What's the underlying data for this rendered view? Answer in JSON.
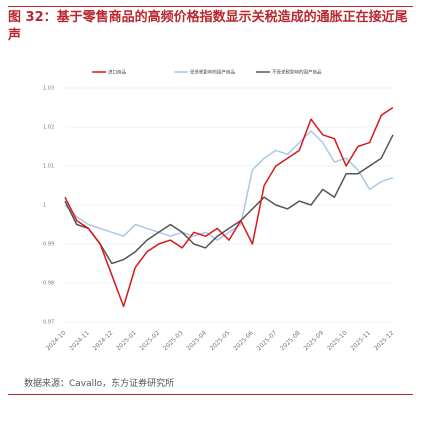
{
  "chart_data": {
    "type": "line",
    "title": "图 32：基于零售商品的高频价格指数显示关税造成的通胀正在接近尾声",
    "source": "数据来源：Cavallo，东方证券研究所",
    "categories": [
      "2024-10",
      null,
      "2024-11",
      null,
      "2024-12",
      null,
      "2025-01",
      null,
      "2025-02",
      null,
      "2025-03",
      null,
      "2025-04",
      null,
      "2025-05",
      null,
      "2025-06",
      null,
      "2025-07",
      null,
      "2025-08",
      null,
      "2025-09",
      null,
      "2025-10",
      null,
      "2025-11",
      null,
      "2025-12"
    ],
    "series": [
      {
        "name": "进口商品",
        "color": "#d7191c",
        "values": [
          1.002,
          0.996,
          0.994,
          0.99,
          0.982,
          0.974,
          0.984,
          0.988,
          0.99,
          0.991,
          0.989,
          0.993,
          0.992,
          0.994,
          0.991,
          0.996,
          0.99,
          1.005,
          1.01,
          1.012,
          1.014,
          1.022,
          1.018,
          1.017,
          1.01,
          1.015,
          1.016,
          1.023,
          1.025
        ]
      },
      {
        "name": "受关税影响的国产商品",
        "color": "#a9c8ea",
        "values": [
          1.0,
          0.997,
          0.995,
          0.994,
          0.993,
          0.992,
          0.995,
          0.994,
          0.993,
          0.992,
          0.993,
          0.992,
          0.993,
          0.991,
          0.993,
          0.995,
          1.009,
          1.012,
          1.014,
          1.013,
          1.016,
          1.019,
          1.016,
          1.011,
          1.012,
          1.009,
          1.004,
          1.006,
          1.007
        ]
      },
      {
        "name": "不受关税影响的国产商品",
        "color": "#555555",
        "values": [
          1.001,
          0.995,
          0.994,
          0.99,
          0.985,
          0.986,
          0.988,
          0.991,
          0.993,
          0.995,
          0.993,
          0.99,
          0.989,
          0.992,
          0.994,
          0.996,
          0.999,
          1.002,
          1.0,
          0.999,
          1.001,
          1.0,
          1.004,
          1.002,
          1.008,
          1.008,
          1.01,
          1.012,
          1.018
        ]
      }
    ],
    "ylim": [
      0.97,
      1.03
    ],
    "yticks": [
      0.97,
      0.98,
      0.99,
      1,
      1.01,
      1.02,
      1.03
    ],
    "grid": true
  }
}
